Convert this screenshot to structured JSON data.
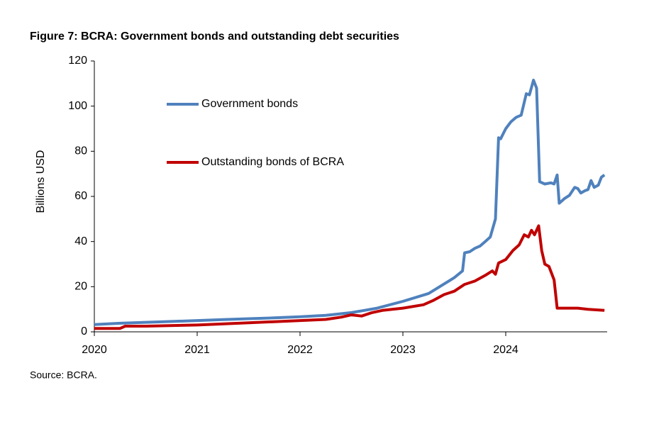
{
  "chart_data": {
    "type": "line",
    "title": "Figure 7: BCRA: Government bonds and outstanding debt securities",
    "y_label": "Billions USD",
    "source": "Source: BCRA.",
    "xlim": [
      2020,
      2025
    ],
    "xticks": [
      2020,
      2021,
      2022,
      2023,
      2024
    ],
    "ylim": [
      0,
      120
    ],
    "yticks": [
      0,
      20,
      40,
      60,
      80,
      100,
      120
    ],
    "series": [
      {
        "name": "Government bonds",
        "color": "#4f81bd",
        "x": [
          2020,
          2020.25,
          2020.5,
          2020.75,
          2021,
          2021.25,
          2021.5,
          2021.75,
          2022,
          2022.25,
          2022.5,
          2022.75,
          2023,
          2023.25,
          2023.5,
          2023.58,
          2023.6,
          2023.65,
          2023.7,
          2023.75,
          2023.8,
          2023.85,
          2023.9,
          2023.93,
          2023.95,
          2024.0,
          2024.05,
          2024.1,
          2024.15,
          2024.2,
          2024.23,
          2024.27,
          2024.3,
          2024.33,
          2024.38,
          2024.44,
          2024.47,
          2024.5,
          2024.52,
          2024.57,
          2024.62,
          2024.67,
          2024.7,
          2024.73,
          2024.77,
          2024.8,
          2024.83,
          2024.86,
          2024.9,
          2024.93,
          2024.96
        ],
        "values": [
          3.2,
          3.8,
          4.2,
          4.6,
          5.0,
          5.4,
          5.8,
          6.2,
          6.7,
          7.3,
          8.5,
          10.5,
          13.5,
          17,
          24,
          27,
          35,
          35.5,
          37,
          38,
          40,
          42,
          50,
          86,
          85.5,
          90,
          93,
          95,
          96,
          105.5,
          105,
          111.5,
          108,
          66.5,
          65.5,
          66,
          65.5,
          69.5,
          57,
          59,
          60.5,
          64,
          63.5,
          61.5,
          62.5,
          63,
          67,
          64,
          65,
          68.5,
          69.5
        ]
      },
      {
        "name": "Outstanding bonds of BCRA",
        "color": "#c00000",
        "x": [
          2020,
          2020.25,
          2020.3,
          2020.5,
          2021,
          2021.5,
          2022,
          2022.25,
          2022.4,
          2022.5,
          2022.6,
          2022.7,
          2022.8,
          2023,
          2023.2,
          2023.3,
          2023.4,
          2023.5,
          2023.6,
          2023.7,
          2023.8,
          2023.87,
          2023.9,
          2023.93,
          2024.0,
          2024.07,
          2024.13,
          2024.18,
          2024.22,
          2024.25,
          2024.28,
          2024.32,
          2024.35,
          2024.38,
          2024.42,
          2024.47,
          2024.5,
          2024.7,
          2024.8,
          2024.96
        ],
        "values": [
          1.5,
          1.5,
          2.5,
          2.5,
          3,
          4,
          5,
          5.5,
          6.5,
          7.5,
          7,
          8.5,
          9.5,
          10.5,
          12,
          14,
          16.5,
          18,
          21,
          22.5,
          25,
          27,
          25.5,
          30.5,
          32,
          36,
          38.5,
          43,
          42,
          45,
          43,
          47,
          36,
          30,
          29,
          23,
          10.5,
          10.5,
          10,
          9.5
        ]
      }
    ]
  }
}
